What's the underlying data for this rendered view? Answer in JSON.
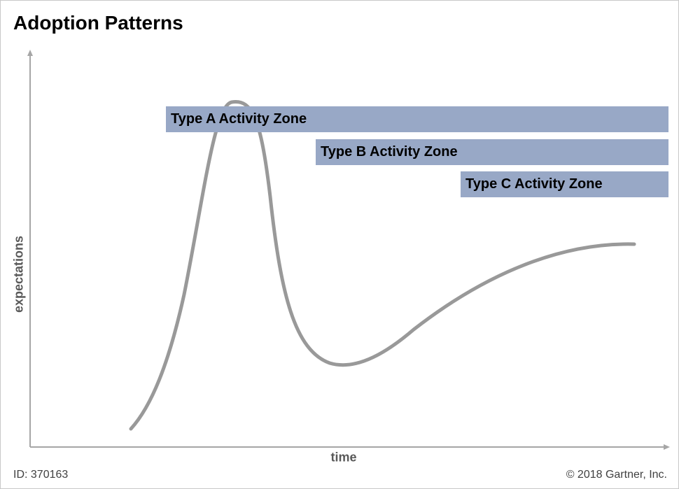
{
  "title": "Adoption Patterns",
  "axes": {
    "y_label": "expectations",
    "x_label": "time"
  },
  "curve": {
    "name": "hype-cycle-curve",
    "color": "#999999"
  },
  "zones": [
    {
      "label": "Type A Activity Zone"
    },
    {
      "label": "Type B Activity Zone"
    },
    {
      "label": "Type C Activity Zone"
    }
  ],
  "zone_color": "#98a8c6",
  "footer": {
    "id": "ID: 370163",
    "copyright": "© 2018 Gartner, Inc."
  }
}
